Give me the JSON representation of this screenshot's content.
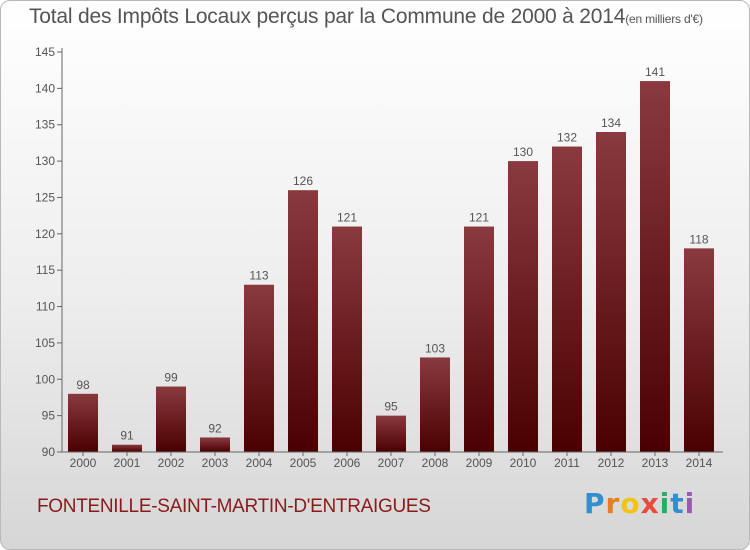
{
  "title": "Total des Impôts Locaux perçus par la Commune de 2000 à 2014",
  "title_unit": "(en milliers d'€)",
  "commune": "FONTENILLE-SAINT-MARTIN-D'ENTRAIGUES",
  "logo": {
    "letters": [
      "P",
      "r",
      "o",
      "x",
      "i",
      "t",
      "i"
    ],
    "colors": [
      "#2f8fd0",
      "#e67e22",
      "#f1c40f",
      "#e74c3c",
      "#27ae60",
      "#2f8fd0",
      "#9b59b6"
    ]
  },
  "colors": {
    "bar_top": "#8a3a3f",
    "bar_bottom": "#4a0000",
    "axis": "#666666"
  },
  "chart_data": {
    "type": "bar",
    "categories": [
      "2000",
      "2001",
      "2002",
      "2003",
      "2004",
      "2005",
      "2006",
      "2007",
      "2008",
      "2009",
      "2010",
      "2011",
      "2012",
      "2013",
      "2014"
    ],
    "values": [
      98,
      91,
      99,
      92,
      113,
      126,
      121,
      95,
      103,
      121,
      130,
      132,
      134,
      141,
      118
    ],
    "ylim": [
      90,
      145
    ],
    "yticks": [
      90,
      95,
      100,
      105,
      110,
      115,
      120,
      125,
      130,
      135,
      140,
      145
    ],
    "grid": false
  }
}
